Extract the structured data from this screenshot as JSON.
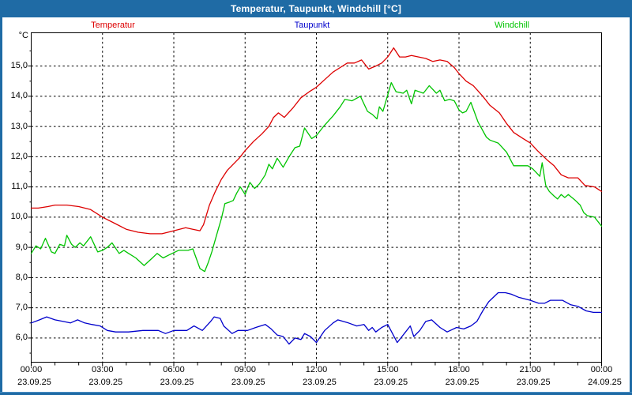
{
  "window": {
    "title": "Temperatur, Taupunkt, Windchill [°C]"
  },
  "colors": {
    "titlebar": "#1f6ba5",
    "frame": "#1f6ba5",
    "plot_background": "#ffffff",
    "axis": "#000000",
    "grid": "#000000",
    "temperatur": "#dd0000",
    "taupunkt": "#0000cc",
    "windchill": "#00c400"
  },
  "chart_data": {
    "type": "line",
    "title": "Temperatur, Taupunkt, Windchill [°C]",
    "ylabel": "°C",
    "xlabel": "",
    "grid": "dashed",
    "legend_position": "top",
    "xlim": [
      0,
      24
    ],
    "ylim": [
      5.2,
      16.1
    ],
    "yticks": [
      {
        "v": 15,
        "label": "15,0"
      },
      {
        "v": 14,
        "label": "14,0"
      },
      {
        "v": 13,
        "label": "13,0"
      },
      {
        "v": 12,
        "label": "12,0"
      },
      {
        "v": 11,
        "label": "11,0"
      },
      {
        "v": 10,
        "label": "10,0"
      },
      {
        "v": 9,
        "label": "9,0"
      },
      {
        "v": 8,
        "label": "8,0"
      },
      {
        "v": 7,
        "label": "7,0"
      },
      {
        "v": 6,
        "label": "6,0"
      }
    ],
    "xticks": [
      {
        "t": 0,
        "time": "00:00",
        "date": "23.09.25"
      },
      {
        "t": 3,
        "time": "03:00",
        "date": "23.09.25"
      },
      {
        "t": 6,
        "time": "06:00",
        "date": "23.09.25"
      },
      {
        "t": 9,
        "time": "09:00",
        "date": "23.09.25"
      },
      {
        "t": 12,
        "time": "12:00",
        "date": "23.09.25"
      },
      {
        "t": 15,
        "time": "15:00",
        "date": "23.09.25"
      },
      {
        "t": 18,
        "time": "18:00",
        "date": "23.09.25"
      },
      {
        "t": 21,
        "time": "21:00",
        "date": "23.09.25"
      },
      {
        "t": 24,
        "time": "00:00",
        "date": "24.09.25"
      }
    ],
    "series": [
      {
        "name": "Temperatur",
        "color": "#dd0000",
        "points": [
          [
            0,
            10.3
          ],
          [
            0.3,
            10.3
          ],
          [
            0.7,
            10.35
          ],
          [
            1,
            10.4
          ],
          [
            1.5,
            10.4
          ],
          [
            2,
            10.35
          ],
          [
            2.5,
            10.25
          ],
          [
            3,
            10.0
          ],
          [
            3.5,
            9.8
          ],
          [
            4,
            9.6
          ],
          [
            4.5,
            9.5
          ],
          [
            5,
            9.45
          ],
          [
            5.5,
            9.45
          ],
          [
            6,
            9.55
          ],
          [
            6.5,
            9.65
          ],
          [
            6.8,
            9.6
          ],
          [
            7.1,
            9.55
          ],
          [
            7.25,
            9.75
          ],
          [
            7.5,
            10.4
          ],
          [
            7.75,
            10.85
          ],
          [
            8,
            11.25
          ],
          [
            8.25,
            11.55
          ],
          [
            8.5,
            11.75
          ],
          [
            8.75,
            11.95
          ],
          [
            9,
            12.2
          ],
          [
            9.35,
            12.5
          ],
          [
            9.7,
            12.75
          ],
          [
            10,
            13.0
          ],
          [
            10.2,
            13.3
          ],
          [
            10.4,
            13.45
          ],
          [
            10.65,
            13.3
          ],
          [
            11,
            13.6
          ],
          [
            11.35,
            13.95
          ],
          [
            11.7,
            14.15
          ],
          [
            12,
            14.3
          ],
          [
            12.35,
            14.55
          ],
          [
            12.7,
            14.8
          ],
          [
            13,
            14.95
          ],
          [
            13.3,
            15.1
          ],
          [
            13.6,
            15.1
          ],
          [
            13.9,
            15.2
          ],
          [
            14.2,
            14.9
          ],
          [
            14.5,
            15.0
          ],
          [
            14.75,
            15.1
          ],
          [
            15,
            15.3
          ],
          [
            15.25,
            15.6
          ],
          [
            15.5,
            15.3
          ],
          [
            15.75,
            15.3
          ],
          [
            16,
            15.35
          ],
          [
            16.3,
            15.3
          ],
          [
            16.6,
            15.25
          ],
          [
            16.9,
            15.15
          ],
          [
            17.2,
            15.2
          ],
          [
            17.5,
            15.15
          ],
          [
            17.8,
            14.95
          ],
          [
            18,
            14.75
          ],
          [
            18.3,
            14.5
          ],
          [
            18.6,
            14.35
          ],
          [
            19,
            14.0
          ],
          [
            19.3,
            13.7
          ],
          [
            19.7,
            13.45
          ],
          [
            20,
            13.1
          ],
          [
            20.3,
            12.8
          ],
          [
            20.7,
            12.6
          ],
          [
            21,
            12.45
          ],
          [
            21.3,
            12.2
          ],
          [
            21.7,
            11.9
          ],
          [
            22,
            11.7
          ],
          [
            22.3,
            11.4
          ],
          [
            22.6,
            11.3
          ],
          [
            23,
            11.3
          ],
          [
            23.3,
            11.05
          ],
          [
            23.7,
            11.0
          ],
          [
            24,
            10.85
          ]
        ]
      },
      {
        "name": "Taupunkt",
        "color": "#0000cc",
        "points": [
          [
            0,
            6.5
          ],
          [
            0.35,
            6.6
          ],
          [
            0.65,
            6.7
          ],
          [
            1,
            6.6
          ],
          [
            1.35,
            6.55
          ],
          [
            1.65,
            6.5
          ],
          [
            1.95,
            6.6
          ],
          [
            2.25,
            6.5
          ],
          [
            2.55,
            6.45
          ],
          [
            2.9,
            6.4
          ],
          [
            3.2,
            6.25
          ],
          [
            3.55,
            6.2
          ],
          [
            4.1,
            6.2
          ],
          [
            4.7,
            6.25
          ],
          [
            5,
            6.25
          ],
          [
            5.35,
            6.25
          ],
          [
            5.65,
            6.15
          ],
          [
            6,
            6.25
          ],
          [
            6.55,
            6.25
          ],
          [
            6.85,
            6.4
          ],
          [
            7.2,
            6.25
          ],
          [
            7.55,
            6.55
          ],
          [
            7.7,
            6.7
          ],
          [
            7.95,
            6.65
          ],
          [
            8.1,
            6.4
          ],
          [
            8.45,
            6.15
          ],
          [
            8.7,
            6.25
          ],
          [
            9.1,
            6.25
          ],
          [
            9.45,
            6.35
          ],
          [
            9.85,
            6.45
          ],
          [
            10.1,
            6.3
          ],
          [
            10.35,
            6.1
          ],
          [
            10.6,
            6.05
          ],
          [
            10.85,
            5.8
          ],
          [
            11.1,
            6.0
          ],
          [
            11.35,
            5.95
          ],
          [
            11.5,
            6.15
          ],
          [
            11.75,
            6.05
          ],
          [
            12,
            5.85
          ],
          [
            12.35,
            6.25
          ],
          [
            12.7,
            6.5
          ],
          [
            12.9,
            6.6
          ],
          [
            13.35,
            6.5
          ],
          [
            13.7,
            6.4
          ],
          [
            14,
            6.45
          ],
          [
            14.2,
            6.25
          ],
          [
            14.35,
            6.35
          ],
          [
            14.5,
            6.2
          ],
          [
            14.75,
            6.35
          ],
          [
            15,
            6.45
          ],
          [
            15.4,
            5.85
          ],
          [
            15.7,
            6.15
          ],
          [
            15.95,
            6.4
          ],
          [
            16.1,
            6.05
          ],
          [
            16.35,
            6.25
          ],
          [
            16.6,
            6.55
          ],
          [
            16.85,
            6.6
          ],
          [
            17.2,
            6.35
          ],
          [
            17.5,
            6.2
          ],
          [
            17.9,
            6.35
          ],
          [
            18.2,
            6.3
          ],
          [
            18.5,
            6.4
          ],
          [
            18.75,
            6.55
          ],
          [
            19,
            6.9
          ],
          [
            19.25,
            7.2
          ],
          [
            19.65,
            7.5
          ],
          [
            19.95,
            7.5
          ],
          [
            20.2,
            7.45
          ],
          [
            20.5,
            7.35
          ],
          [
            21,
            7.25
          ],
          [
            21.35,
            7.15
          ],
          [
            21.6,
            7.15
          ],
          [
            21.85,
            7.25
          ],
          [
            22.2,
            7.25
          ],
          [
            22.35,
            7.25
          ],
          [
            22.7,
            7.1
          ],
          [
            23,
            7.05
          ],
          [
            23.35,
            6.9
          ],
          [
            23.65,
            6.85
          ],
          [
            24,
            6.85
          ]
        ]
      },
      {
        "name": "Windchill",
        "color": "#00c400",
        "points": [
          [
            0,
            8.8
          ],
          [
            0.2,
            9.05
          ],
          [
            0.4,
            8.95
          ],
          [
            0.6,
            9.3
          ],
          [
            0.85,
            8.85
          ],
          [
            1,
            8.8
          ],
          [
            1.2,
            9.1
          ],
          [
            1.4,
            9.05
          ],
          [
            1.5,
            9.4
          ],
          [
            1.7,
            9.1
          ],
          [
            1.85,
            9.0
          ],
          [
            2.05,
            9.15
          ],
          [
            2.2,
            9.05
          ],
          [
            2.5,
            9.35
          ],
          [
            2.8,
            8.85
          ],
          [
            3,
            8.9
          ],
          [
            3.2,
            9.0
          ],
          [
            3.4,
            9.15
          ],
          [
            3.7,
            8.8
          ],
          [
            3.9,
            8.9
          ],
          [
            4.1,
            8.8
          ],
          [
            4.4,
            8.65
          ],
          [
            4.75,
            8.4
          ],
          [
            5.1,
            8.65
          ],
          [
            5.3,
            8.8
          ],
          [
            5.55,
            8.65
          ],
          [
            5.8,
            8.75
          ],
          [
            6.2,
            8.9
          ],
          [
            6.6,
            8.9
          ],
          [
            6.8,
            8.95
          ],
          [
            7.1,
            8.3
          ],
          [
            7.3,
            8.2
          ],
          [
            7.45,
            8.5
          ],
          [
            7.6,
            8.85
          ],
          [
            7.8,
            9.4
          ],
          [
            8,
            9.95
          ],
          [
            8.15,
            10.45
          ],
          [
            8.35,
            10.5
          ],
          [
            8.5,
            10.55
          ],
          [
            8.65,
            10.8
          ],
          [
            8.8,
            11.0
          ],
          [
            9,
            10.75
          ],
          [
            9.2,
            11.15
          ],
          [
            9.4,
            10.95
          ],
          [
            9.6,
            11.1
          ],
          [
            9.85,
            11.4
          ],
          [
            10,
            11.75
          ],
          [
            10.15,
            11.6
          ],
          [
            10.35,
            11.95
          ],
          [
            10.6,
            11.65
          ],
          [
            10.85,
            12.0
          ],
          [
            11.1,
            12.3
          ],
          [
            11.3,
            12.35
          ],
          [
            11.5,
            12.95
          ],
          [
            11.8,
            12.6
          ],
          [
            12,
            12.7
          ],
          [
            12.3,
            13.0
          ],
          [
            12.7,
            13.35
          ],
          [
            13,
            13.65
          ],
          [
            13.2,
            13.9
          ],
          [
            13.5,
            13.85
          ],
          [
            13.85,
            14.0
          ],
          [
            14.15,
            13.5
          ],
          [
            14.35,
            13.4
          ],
          [
            14.55,
            13.25
          ],
          [
            14.65,
            13.65
          ],
          [
            14.8,
            13.5
          ],
          [
            15.15,
            14.45
          ],
          [
            15.35,
            14.15
          ],
          [
            15.65,
            14.1
          ],
          [
            15.8,
            14.2
          ],
          [
            16,
            13.75
          ],
          [
            16.15,
            14.2
          ],
          [
            16.5,
            14.1
          ],
          [
            16.75,
            14.35
          ],
          [
            17.05,
            14.1
          ],
          [
            17.2,
            14.2
          ],
          [
            17.4,
            13.85
          ],
          [
            17.6,
            13.9
          ],
          [
            17.8,
            13.85
          ],
          [
            18,
            13.55
          ],
          [
            18.15,
            13.45
          ],
          [
            18.3,
            13.5
          ],
          [
            18.5,
            13.8
          ],
          [
            18.8,
            13.15
          ],
          [
            19.15,
            12.65
          ],
          [
            19.3,
            12.55
          ],
          [
            19.65,
            12.45
          ],
          [
            20,
            12.15
          ],
          [
            20.3,
            11.7
          ],
          [
            20.9,
            11.7
          ],
          [
            21.1,
            11.6
          ],
          [
            21.4,
            11.35
          ],
          [
            21.5,
            11.8
          ],
          [
            21.65,
            11.05
          ],
          [
            21.8,
            10.85
          ],
          [
            22,
            10.7
          ],
          [
            22.15,
            10.6
          ],
          [
            22.3,
            10.75
          ],
          [
            22.45,
            10.65
          ],
          [
            22.6,
            10.75
          ],
          [
            22.9,
            10.55
          ],
          [
            23.1,
            10.4
          ],
          [
            23.25,
            10.15
          ],
          [
            23.4,
            10.05
          ],
          [
            23.7,
            10.0
          ],
          [
            24,
            9.7
          ]
        ]
      }
    ]
  }
}
